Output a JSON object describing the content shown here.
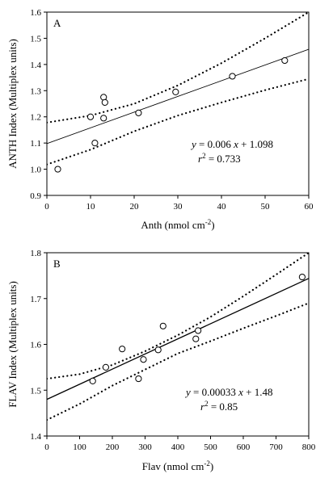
{
  "chart_data": [
    {
      "type": "scatter",
      "panel_label": "A",
      "xlabel": "Anth (nmol cm",
      "xlabel_sup": "-2",
      "xlabel_end": ")",
      "ylabel": "ANTH Index (Multiplex units)",
      "xlim": [
        0,
        60
      ],
      "ylim": [
        0.9,
        1.6
      ],
      "xticks": [
        0,
        10,
        20,
        30,
        40,
        50,
        60
      ],
      "yticks": [
        0.9,
        1.0,
        1.1,
        1.2,
        1.3,
        1.4,
        1.5,
        1.6
      ],
      "ytick_decimals": 1,
      "points": [
        {
          "x": 2.5,
          "y": 1.0
        },
        {
          "x": 10.0,
          "y": 1.2
        },
        {
          "x": 11.0,
          "y": 1.1
        },
        {
          "x": 13.0,
          "y": 1.275
        },
        {
          "x": 13.3,
          "y": 1.255
        },
        {
          "x": 13.0,
          "y": 1.195
        },
        {
          "x": 21.0,
          "y": 1.215
        },
        {
          "x": 29.5,
          "y": 1.295
        },
        {
          "x": 42.5,
          "y": 1.355
        },
        {
          "x": 54.5,
          "y": 1.415
        }
      ],
      "fit": {
        "slope": 0.006,
        "intercept": 1.098
      },
      "ci_upper": [
        [
          0,
          1.178
        ],
        [
          10,
          1.205
        ],
        [
          20,
          1.25
        ],
        [
          30,
          1.32
        ],
        [
          40,
          1.405
        ],
        [
          50,
          1.5
        ],
        [
          60,
          1.6
        ]
      ],
      "ci_lower": [
        [
          0,
          1.018
        ],
        [
          10,
          1.075
        ],
        [
          20,
          1.145
        ],
        [
          30,
          1.205
        ],
        [
          40,
          1.255
        ],
        [
          50,
          1.302
        ],
        [
          60,
          1.345
        ]
      ],
      "equation": {
        "y_var": "y",
        "mid": " = 0.006 ",
        "x_var": "x",
        "end": " + 1.098"
      },
      "r2": {
        "r_var": "r",
        "sup": "2",
        "end": " = 0.733"
      },
      "grid": false
    },
    {
      "type": "scatter",
      "panel_label": "B",
      "xlabel": "Flav (nmol cm",
      "xlabel_sup": "-2",
      "xlabel_end": ")",
      "ylabel": "FLAV Index (Multiplex units)",
      "xlim": [
        0,
        800
      ],
      "ylim": [
        1.4,
        1.8
      ],
      "xticks": [
        0,
        100,
        200,
        300,
        400,
        500,
        600,
        700,
        800
      ],
      "yticks": [
        1.4,
        1.5,
        1.6,
        1.7,
        1.8
      ],
      "ytick_decimals": 1,
      "points": [
        {
          "x": 140,
          "y": 1.52
        },
        {
          "x": 180,
          "y": 1.55
        },
        {
          "x": 230,
          "y": 1.59
        },
        {
          "x": 280,
          "y": 1.525
        },
        {
          "x": 295,
          "y": 1.567
        },
        {
          "x": 340,
          "y": 1.588
        },
        {
          "x": 355,
          "y": 1.64
        },
        {
          "x": 455,
          "y": 1.612
        },
        {
          "x": 462,
          "y": 1.63
        },
        {
          "x": 780,
          "y": 1.747
        }
      ],
      "fit": {
        "slope": 0.00033,
        "intercept": 1.48
      },
      "ci_upper": [
        [
          0,
          1.525
        ],
        [
          100,
          1.535
        ],
        [
          200,
          1.555
        ],
        [
          300,
          1.585
        ],
        [
          400,
          1.62
        ],
        [
          500,
          1.66
        ],
        [
          600,
          1.705
        ],
        [
          700,
          1.752
        ],
        [
          800,
          1.8
        ]
      ],
      "ci_lower": [
        [
          0,
          1.435
        ],
        [
          100,
          1.47
        ],
        [
          200,
          1.51
        ],
        [
          300,
          1.545
        ],
        [
          400,
          1.58
        ],
        [
          500,
          1.607
        ],
        [
          600,
          1.635
        ],
        [
          700,
          1.662
        ],
        [
          800,
          1.69
        ]
      ],
      "equation": {
        "y_var": "y",
        "mid": " = 0.00033 ",
        "x_var": "x",
        "end": " + 1.48"
      },
      "r2": {
        "r_var": "r",
        "sup": "2",
        "end": " = 0.85"
      },
      "grid": false
    }
  ]
}
